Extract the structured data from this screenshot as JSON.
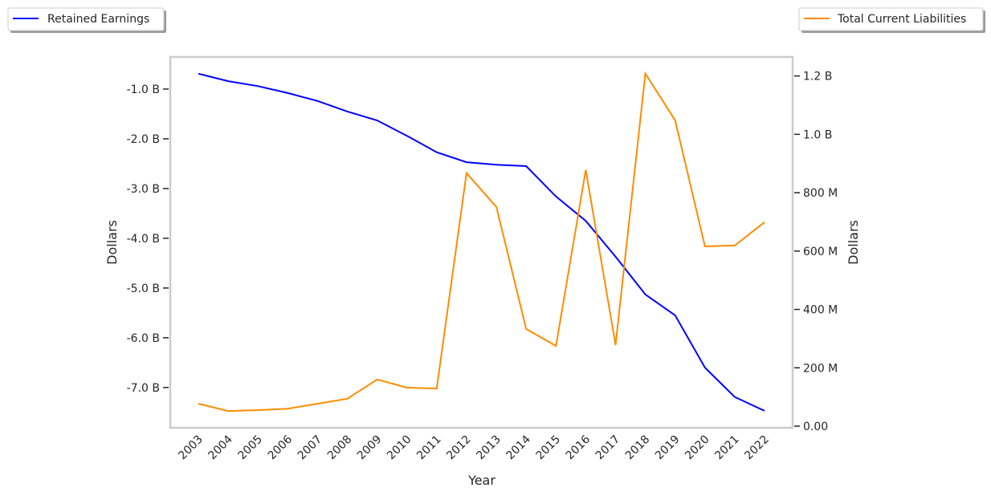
{
  "chart_data": {
    "type": "line",
    "xlabel": "Year",
    "categories": [
      "2003",
      "2004",
      "2005",
      "2006",
      "2007",
      "2008",
      "2009",
      "2010",
      "2011",
      "2012",
      "2013",
      "2014",
      "2015",
      "2016",
      "2017",
      "2018",
      "2019",
      "2020",
      "2021",
      "2022"
    ],
    "series": [
      {
        "name": "Retained Earnings",
        "axis": "left",
        "color": "#0000ff",
        "unit": "B",
        "values": [
          -0.69,
          -0.84,
          -0.94,
          -1.08,
          -1.24,
          -1.45,
          -1.63,
          -1.94,
          -2.27,
          -2.47,
          -2.52,
          -2.55,
          -3.16,
          -3.65,
          -4.37,
          -5.13,
          -5.55,
          -6.6,
          -7.19,
          -7.47
        ]
      },
      {
        "name": "Total Current Liabilities",
        "axis": "right",
        "color": "#ff8c00",
        "unit": "M",
        "values": [
          77,
          52,
          55,
          60,
          77,
          94,
          160,
          132,
          129,
          867,
          751,
          333,
          275,
          878,
          278,
          1208,
          1048,
          616,
          619,
          699
        ]
      }
    ],
    "left_axis": {
      "label": "Dollars",
      "ylim": [
        -7.81,
        -0.355
      ],
      "ticks": [
        {
          "v": -1,
          "label": "-1.0 B"
        },
        {
          "v": -2,
          "label": "-2.0 B"
        },
        {
          "v": -3,
          "label": "-3.0 B"
        },
        {
          "v": -4,
          "label": "-4.0 B"
        },
        {
          "v": -5,
          "label": "-5.0 B"
        },
        {
          "v": -6,
          "label": "-6.0 B"
        },
        {
          "v": -7,
          "label": "-7.0 B"
        }
      ]
    },
    "right_axis": {
      "label": "Dollars",
      "ylim": [
        -5.5,
        1265
      ],
      "ticks": [
        {
          "v": 0,
          "label": "0.00"
        },
        {
          "v": 200,
          "label": "200 M"
        },
        {
          "v": 400,
          "label": "400 M"
        },
        {
          "v": 600,
          "label": "600 M"
        },
        {
          "v": 800,
          "label": "800 M"
        },
        {
          "v": 1000,
          "label": "1.0 B"
        },
        {
          "v": 1200,
          "label": "1.2 B"
        }
      ]
    },
    "grid": false,
    "legend": [
      "top-left",
      "top-right"
    ]
  }
}
